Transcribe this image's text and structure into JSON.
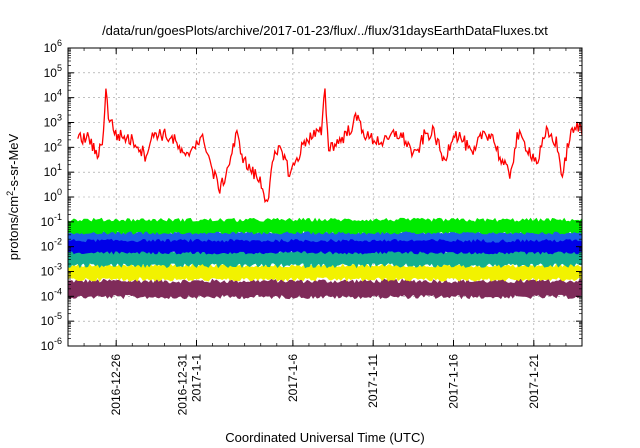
{
  "chart_data": {
    "type": "line",
    "title": "/data/run/goesPlots/archive/2017-01-23/flux/../flux/31daysEarthDataFluxes.txt",
    "xlabel": "Coordinated Universal Time (UTC)",
    "ylabel": {
      "main": "protons/cm",
      "sup": "2",
      "rest": "-s-sr-MeV"
    },
    "y_scale": "log",
    "ylim_exponent": [
      -6,
      6
    ],
    "y_tick_base": "10",
    "y_tick_exponents": [
      "-6",
      "-5",
      "-4",
      "-3",
      "-2",
      "-1",
      "0",
      "1",
      "2",
      "3",
      "4",
      "5",
      "6"
    ],
    "xlim": [
      "2016-12-23",
      "2017-01-24"
    ],
    "x_ticks": [
      {
        "date": "2016-12-26",
        "label": [
          "2016-12-26"
        ]
      },
      {
        "date": "2016-12-31",
        "label": [
          "2016-12-31",
          "2017-1-1"
        ]
      },
      {
        "date": "2017-01-06",
        "label": [
          "2017-1-6"
        ]
      },
      {
        "date": "2017-01-11",
        "label": [
          "2017-1-11"
        ]
      },
      {
        "date": "2017-01-16",
        "label": [
          "2017-1-16"
        ]
      },
      {
        "date": "2017-01-21",
        "label": [
          "2017-1-21"
        ]
      }
    ],
    "grid": true,
    "series": [
      {
        "color": "#7f2b5a",
        "log10_points": [
          [
            "2016-12-23",
            -3.75
          ],
          [
            "2016-12-26",
            -3.7
          ],
          [
            "2016-12-30",
            -3.75
          ],
          [
            "2017-01-04",
            -3.7
          ],
          [
            "2017-01-09",
            -3.75
          ],
          [
            "2017-01-14",
            -3.7
          ],
          [
            "2017-01-19",
            -3.75
          ],
          [
            "2017-01-24",
            -3.7
          ]
        ],
        "band_log10": [
          -4.1,
          -3.3
        ]
      },
      {
        "color": "#f2f200",
        "log10_points": [
          [
            "2016-12-23",
            -3.0
          ],
          [
            "2016-12-28",
            -3.0
          ],
          [
            "2017-01-02",
            -3.05
          ],
          [
            "2017-01-07",
            -3.0
          ],
          [
            "2017-01-12",
            -3.0
          ],
          [
            "2017-01-17",
            -3.05
          ],
          [
            "2017-01-24",
            -3.0
          ]
        ],
        "band_log10": [
          -3.4,
          -2.7
        ]
      },
      {
        "color": "#13b08f",
        "log10_points": [
          [
            "2016-12-23",
            -2.4
          ],
          [
            "2016-12-28",
            -2.4
          ],
          [
            "2017-01-02",
            -2.45
          ],
          [
            "2017-01-07",
            -2.4
          ],
          [
            "2017-01-12",
            -2.4
          ],
          [
            "2017-01-17",
            -2.45
          ],
          [
            "2017-01-24",
            -2.4
          ]
        ],
        "band_log10": [
          -2.85,
          -2.1
        ]
      },
      {
        "color": "#1b5fe8",
        "log10_points": [
          [
            "2016-12-23",
            -1.7
          ],
          [
            "2016-12-28",
            -1.7
          ],
          [
            "2017-01-02",
            -1.75
          ],
          [
            "2017-01-07",
            -1.7
          ],
          [
            "2017-01-12",
            -1.7
          ],
          [
            "2017-01-17",
            -1.75
          ],
          [
            "2017-01-24",
            -1.7
          ]
        ],
        "band_log10": [
          -2.2,
          -1.3
        ]
      },
      {
        "color": "#00ea00",
        "log10_points": [
          [
            "2016-12-23",
            -1.2
          ],
          [
            "2016-12-28",
            -1.2
          ],
          [
            "2017-01-02",
            -1.25
          ],
          [
            "2017-01-06",
            -1.2
          ],
          [
            "2017-01-12",
            -1.2
          ],
          [
            "2017-01-17",
            -1.25
          ],
          [
            "2017-01-24",
            -1.2
          ]
        ],
        "band_log10": [
          -1.5,
          -0.85
        ]
      },
      {
        "color": "#0000e8",
        "log10_points": [
          [
            "2016-12-23",
            -2.0
          ],
          [
            "2016-12-28",
            -2.0
          ],
          [
            "2017-01-02",
            -2.05
          ],
          [
            "2017-01-07",
            -2.0
          ],
          [
            "2017-01-12",
            -2.0
          ],
          [
            "2017-01-17",
            -2.05
          ],
          [
            "2017-01-24",
            -2.0
          ]
        ],
        "band_log10": [
          -2.3,
          -1.7
        ]
      },
      {
        "color": "#ff0000",
        "log10_points": [
          [
            "2016-12-23.6",
            2.3
          ],
          [
            "2016-12-24.3",
            2.4
          ],
          [
            "2016-12-24.8",
            1.6
          ],
          [
            "2016-12-25.2",
            2.5
          ],
          [
            "2016-12-25.4",
            4.6
          ],
          [
            "2016-12-25.5",
            3.3
          ],
          [
            "2016-12-26.0",
            2.5
          ],
          [
            "2016-12-26.6",
            2.4
          ],
          [
            "2016-12-27.2",
            2.2
          ],
          [
            "2016-12-27.8",
            1.7
          ],
          [
            "2016-12-28.4",
            2.6
          ],
          [
            "2016-12-29.0",
            2.5
          ],
          [
            "2016-12-29.6",
            2.3
          ],
          [
            "2016-12-30.3",
            1.5
          ],
          [
            "2016-12-30.9",
            2.2
          ],
          [
            "2016-12-31.5",
            2.3
          ],
          [
            "2017-01-01.0",
            1.0
          ],
          [
            "2017-01-01.5",
            0.3
          ],
          [
            "2017-01-02.0",
            1.3
          ],
          [
            "2017-01-02.5",
            2.5
          ],
          [
            "2017-01-03.0",
            1.4
          ],
          [
            "2017-01-03.5",
            1.0
          ],
          [
            "2017-01-04.0",
            0.6
          ],
          [
            "2017-01-04.4",
            -0.2
          ],
          [
            "2017-01-04.8",
            1.5
          ],
          [
            "2017-01-05.3",
            2.0
          ],
          [
            "2017-01-05.8",
            0.9
          ],
          [
            "2017-01-06.3",
            1.6
          ],
          [
            "2017-01-06.8",
            2.3
          ],
          [
            "2017-01-07.3",
            2.5
          ],
          [
            "2017-01-07.8",
            2.6
          ],
          [
            "2017-01-08.0",
            4.5
          ],
          [
            "2017-01-08.2",
            2.0
          ],
          [
            "2017-01-08.8",
            2.2
          ],
          [
            "2017-01-09.4",
            2.6
          ],
          [
            "2017-01-10.0",
            3.2
          ],
          [
            "2017-01-10.6",
            2.4
          ],
          [
            "2017-01-11.2",
            2.3
          ],
          [
            "2017-01-11.8",
            2.2
          ],
          [
            "2017-01-12.4",
            2.6
          ],
          [
            "2017-01-13.0",
            2.3
          ],
          [
            "2017-01-13.6",
            1.6
          ],
          [
            "2017-01-14.2",
            2.5
          ],
          [
            "2017-01-14.8",
            2.6
          ],
          [
            "2017-01-15.4",
            1.4
          ],
          [
            "2017-01-16.0",
            2.6
          ],
          [
            "2017-01-16.6",
            2.3
          ],
          [
            "2017-01-17.2",
            1.6
          ],
          [
            "2017-01-17.8",
            2.6
          ],
          [
            "2017-01-18.4",
            2.5
          ],
          [
            "2017-01-19.0",
            1.4
          ],
          [
            "2017-01-19.5",
            0.9
          ],
          [
            "2017-01-20.0",
            2.5
          ],
          [
            "2017-01-20.6",
            2.0
          ],
          [
            "2017-01-21.2",
            1.4
          ],
          [
            "2017-01-21.8",
            2.6
          ],
          [
            "2017-01-22.4",
            2.2
          ],
          [
            "2017-01-22.8",
            0.8
          ],
          [
            "2017-01-23.2",
            2.4
          ],
          [
            "2017-01-23.8",
            2.9
          ],
          [
            "2017-01-24.0",
            2.6
          ]
        ]
      }
    ]
  }
}
